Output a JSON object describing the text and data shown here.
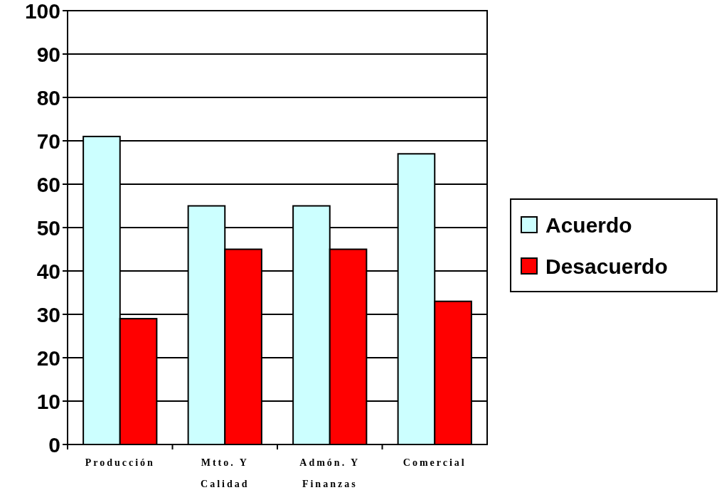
{
  "chart_data": {
    "type": "bar",
    "categories": [
      "Producción",
      "Mtto. Y Calidad",
      "Admón. Y Finanzas",
      "Comercial"
    ],
    "series": [
      {
        "name": "Acuerdo",
        "color": "#ccffff",
        "values": [
          71,
          55,
          55,
          67
        ]
      },
      {
        "name": "Desacuerdo",
        "color": "#ff0000",
        "values": [
          29,
          45,
          45,
          33
        ]
      }
    ],
    "ylim": [
      0,
      100
    ],
    "yticks": [
      0,
      10,
      20,
      30,
      40,
      50,
      60,
      70,
      80,
      90,
      100
    ],
    "grid": "y",
    "legend": "right"
  }
}
